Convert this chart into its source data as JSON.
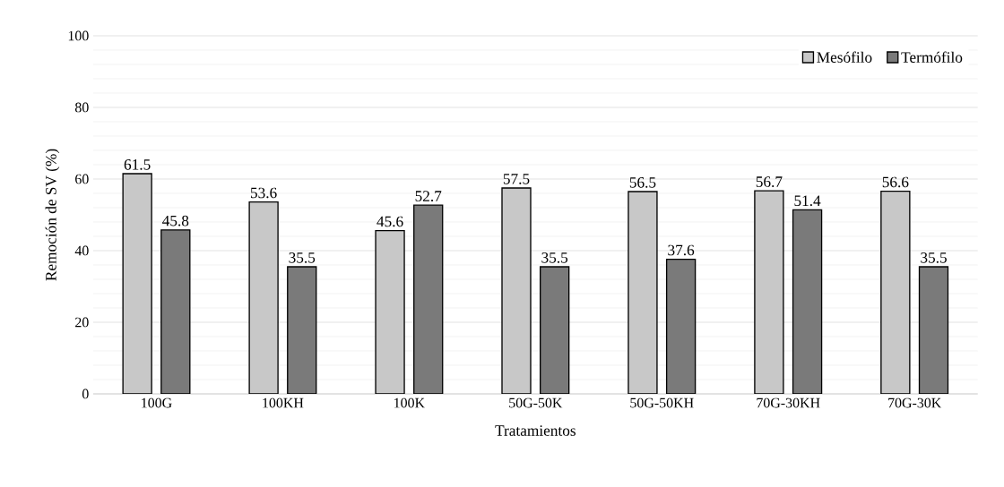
{
  "chart_data": {
    "type": "bar",
    "xlabel": "Tratamientos",
    "ylabel": "Remoción de SV (%)",
    "categories": [
      "100G",
      "100KH",
      "100K",
      "50G-50K",
      "50G-50KH",
      "70G-30KH",
      "70G-30K"
    ],
    "series": [
      {
        "name": "Mesófilo",
        "color": "#c8c8c8",
        "values": [
          61.5,
          53.6,
          45.6,
          57.5,
          56.5,
          56.7,
          56.6
        ]
      },
      {
        "name": "Termófilo",
        "color": "#7a7a7a",
        "values": [
          45.8,
          35.5,
          52.7,
          35.5,
          37.6,
          51.4,
          35.5
        ]
      }
    ],
    "ylim": [
      0,
      100
    ],
    "yticks": [
      0,
      20,
      40,
      60,
      80,
      100
    ],
    "grid": "y",
    "legend": "top right",
    "data_labels": true
  }
}
